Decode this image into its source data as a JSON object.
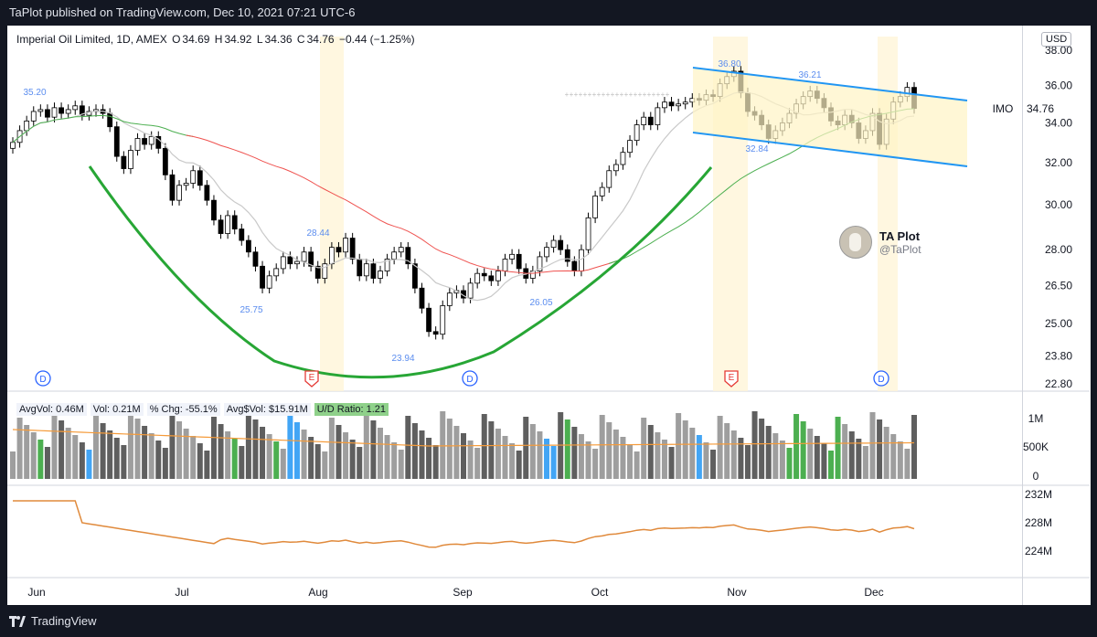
{
  "header": {
    "published": "TaPlot published on TradingView.com, Dec 10, 2021 07:21 UTC-6"
  },
  "legend": {
    "symbol": "Imperial Oil Limited, 1D, AMEX",
    "o_label": "O",
    "o": "34.69",
    "h_label": "H",
    "h": "34.92",
    "l_label": "L",
    "l": "34.36",
    "c_label": "C",
    "c": "34.76",
    "change": "−0.44 (−1.25%)"
  },
  "currency": "USD",
  "ticker_label": "IMO",
  "last_price": "34.76",
  "author": {
    "name": "TA Plot",
    "handle": "@TaPlot"
  },
  "volume_legend": {
    "avgvol": "AvgVol: 0.46M",
    "vol": "Vol: 0.21M",
    "pct": "% Chg: -55.1%",
    "avgdollar": "Avg$Vol: $15.91M",
    "ud": "U/D Ratio: 1.21"
  },
  "footer": {
    "brand": "TradingView"
  },
  "colors": {
    "up": "#ffffff",
    "down": "#000000",
    "ma_gray": "#c9c9c9",
    "ma_green": "#4caf50",
    "ma_red": "#ef5350",
    "channel": "#2196f3",
    "cup": "#27a635",
    "annotation": "#5b8def"
  },
  "chart_data": {
    "type": "candlestick",
    "x_ticks": [
      "Jun",
      "Jul",
      "Aug",
      "Sep",
      "Oct",
      "Nov",
      "Dec"
    ],
    "y_ticks": [
      "38.00",
      "36.00",
      "34.00",
      "32.00",
      "30.00",
      "28.00",
      "26.50",
      "25.00",
      "23.80",
      "22.80"
    ],
    "y_scale": "log",
    "volume_ticks": [
      "1M",
      "500K",
      "0"
    ],
    "dollar_ticks": [
      "232M",
      "228M",
      "224M"
    ],
    "price_annotations": [
      "35.20",
      "25.75",
      "28.44",
      "23.94",
      "26.05",
      "36.80",
      "32.84",
      "36.21"
    ],
    "event_markers": [
      "D",
      "E",
      "D",
      "E",
      "D"
    ],
    "closes": [
      33.0,
      33.6,
      34.1,
      34.6,
      34.7,
      34.3,
      34.8,
      34.5,
      34.7,
      34.9,
      34.4,
      34.6,
      34.7,
      34.5,
      33.8,
      32.3,
      31.7,
      32.6,
      33.2,
      32.9,
      33.3,
      32.7,
      31.4,
      30.2,
      30.9,
      31.0,
      31.6,
      30.9,
      30.2,
      29.3,
      28.7,
      29.5,
      28.9,
      28.4,
      27.9,
      27.3,
      26.4,
      26.9,
      27.2,
      27.7,
      27.4,
      27.5,
      27.9,
      27.3,
      26.8,
      27.4,
      28.1,
      27.9,
      28.5,
      27.6,
      26.9,
      27.4,
      26.8,
      27.1,
      27.6,
      27.9,
      28.1,
      27.4,
      26.4,
      25.6,
      24.7,
      24.6,
      25.7,
      26.2,
      26.3,
      26.0,
      26.6,
      27.0,
      26.9,
      26.7,
      27.1,
      27.6,
      27.8,
      27.2,
      26.8,
      27.1,
      27.7,
      28.1,
      28.4,
      28.0,
      27.5,
      27.1,
      28.0,
      29.4,
      30.4,
      30.8,
      31.6,
      31.9,
      32.5,
      33.1,
      33.9,
      34.3,
      33.9,
      34.8,
      35.1,
      34.9,
      35.0,
      35.1,
      35.3,
      35.2,
      35.5,
      35.4,
      36.1,
      36.5,
      36.8,
      35.6,
      34.6,
      34.4,
      33.9,
      33.2,
      33.6,
      34.0,
      34.5,
      35.0,
      35.4,
      35.7,
      35.3,
      34.8,
      34.1,
      33.9,
      34.4,
      34.0,
      33.2,
      33.6,
      34.5,
      32.9,
      34.2,
      35.1,
      35.4,
      35.9,
      34.76
    ]
  }
}
